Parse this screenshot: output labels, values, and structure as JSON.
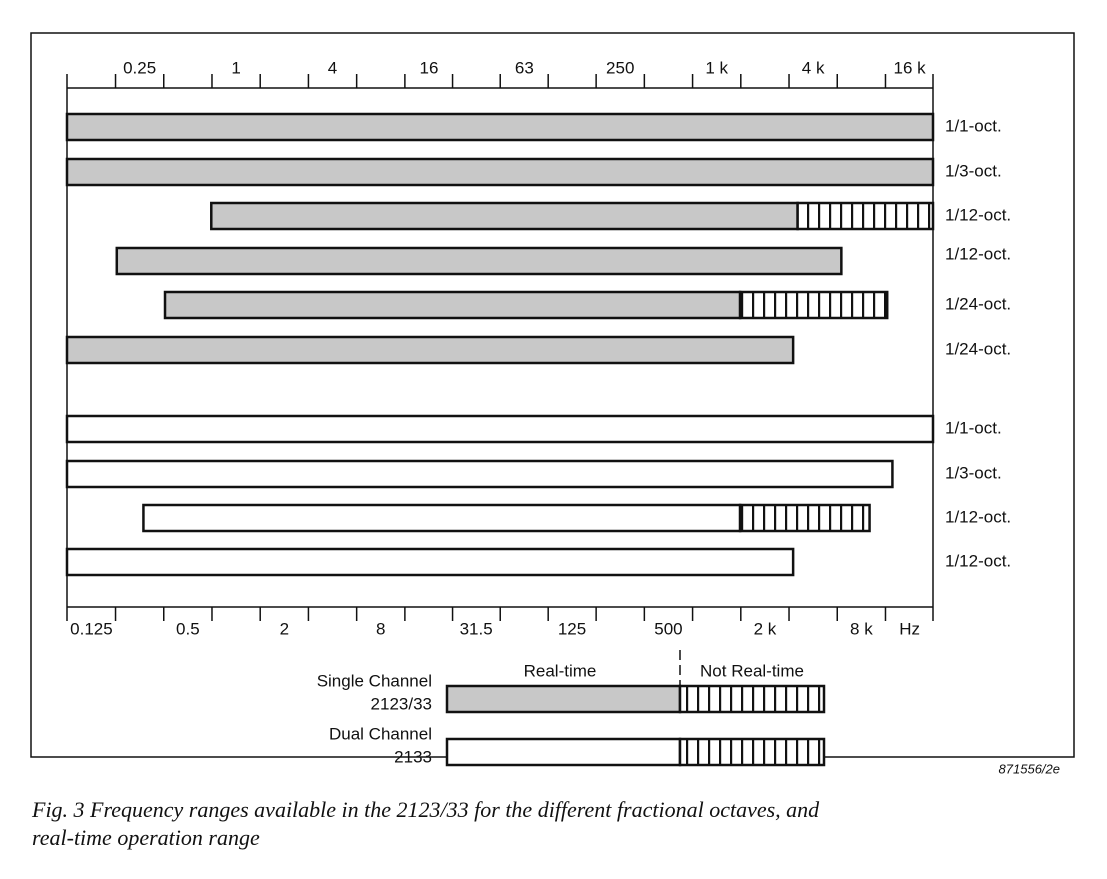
{
  "chart_data": {
    "type": "range_bar",
    "x_scale": "log",
    "xlim": [
      0.088,
      22400
    ],
    "xticks_top": [
      0.25,
      1,
      4,
      16,
      63,
      250,
      {
        "value": 1000,
        "label": "1 k"
      },
      {
        "value": 4000,
        "label": "4 k"
      },
      {
        "value": 16000,
        "label": "16 k"
      }
    ],
    "xticks": [
      0.125,
      0.5,
      2,
      8,
      31.5,
      125,
      500,
      {
        "value": 2000,
        "label": "2 k"
      },
      {
        "value": 8000,
        "label": "8 k"
      }
    ],
    "x_unit": "Hz",
    "realtime_label": "Real-time",
    "not_realtime_label": "Not Real-time",
    "groups": [
      {
        "name": "Single Channel",
        "model": "2123/33",
        "color": "#c8c8c8",
        "bars": [
          {
            "label": "1/1-oct.",
            "start": 0.088,
            "end": 22400
          },
          {
            "label": "1/3-oct.",
            "start": 0.088,
            "end": 22400
          },
          {
            "label": "1/12-oct.",
            "start": 0.7,
            "realtime_end": 3200,
            "end": 22400
          },
          {
            "label": "1/12-oct.",
            "start": 0.18,
            "end": 6000
          },
          {
            "label": "1/24-oct.",
            "start": 0.36,
            "realtime_end": 1400,
            "end": 11600
          },
          {
            "label": "1/24-oct.",
            "start": 0.088,
            "end": 3000
          }
        ]
      },
      {
        "name": "Dual Channel",
        "model": "2133",
        "color": "#ffffff",
        "bars": [
          {
            "label": "1/1-oct.",
            "start": 0.088,
            "end": 22400
          },
          {
            "label": "1/3-oct.",
            "start": 0.088,
            "end": 12500
          },
          {
            "label": "1/12-oct.",
            "start": 0.264,
            "realtime_end": 1400,
            "end": 9000
          },
          {
            "label": "1/12-oct.",
            "start": 0.088,
            "end": 3000
          }
        ]
      }
    ],
    "figure_code": "871556/2e",
    "caption_line1": "Fig. 3 Frequency ranges available in the 2123/33 for the different fractional octaves, and",
    "caption_line2": "real-time operation range"
  }
}
